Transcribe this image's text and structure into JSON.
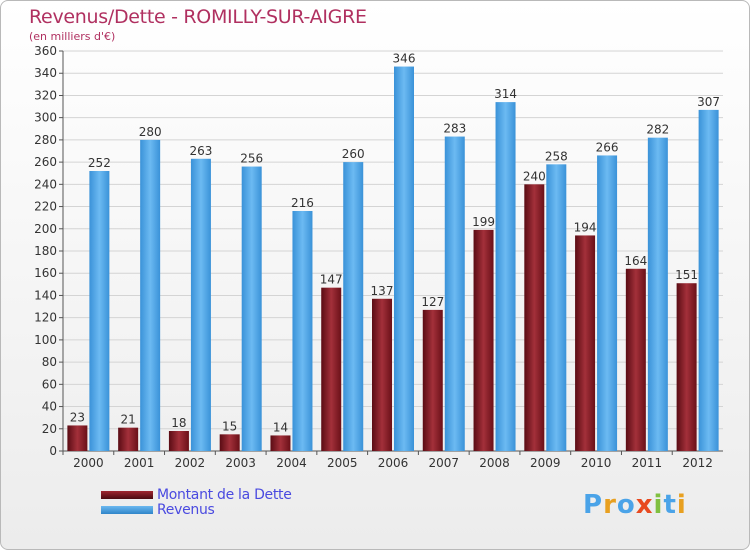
{
  "header": {
    "title": "Revenus/Dette - ROMILLY-SUR-AIGRE",
    "subtitle": "(en milliers d'€)"
  },
  "legend": {
    "debt_label": "Montant de la Dette",
    "revenue_label": "Revenus"
  },
  "logo": {
    "text": "Proxiti"
  },
  "colors": {
    "debt": "#7a1a22",
    "revenue": "#4aa3e8",
    "title": "#b03060"
  },
  "chart_data": {
    "type": "bar",
    "title": "Revenus/Dette - ROMILLY-SUR-AIGRE",
    "subtitle": "(en milliers d'€)",
    "categories": [
      "2000",
      "2001",
      "2002",
      "2003",
      "2004",
      "2005",
      "2006",
      "2007",
      "2008",
      "2009",
      "2010",
      "2011",
      "2012"
    ],
    "series": [
      {
        "name": "Montant de la Dette",
        "values": [
          23,
          21,
          18,
          15,
          14,
          147,
          137,
          127,
          199,
          240,
          194,
          164,
          151
        ]
      },
      {
        "name": "Revenus",
        "values": [
          252,
          280,
          263,
          256,
          216,
          260,
          346,
          283,
          314,
          258,
          266,
          282,
          307
        ]
      }
    ],
    "ylim": [
      0,
      360
    ],
    "yticks": [
      0,
      20,
      40,
      60,
      80,
      100,
      120,
      140,
      160,
      180,
      200,
      220,
      240,
      260,
      280,
      300,
      320,
      340,
      360
    ],
    "grid": true,
    "legend_position": "bottom-left"
  }
}
